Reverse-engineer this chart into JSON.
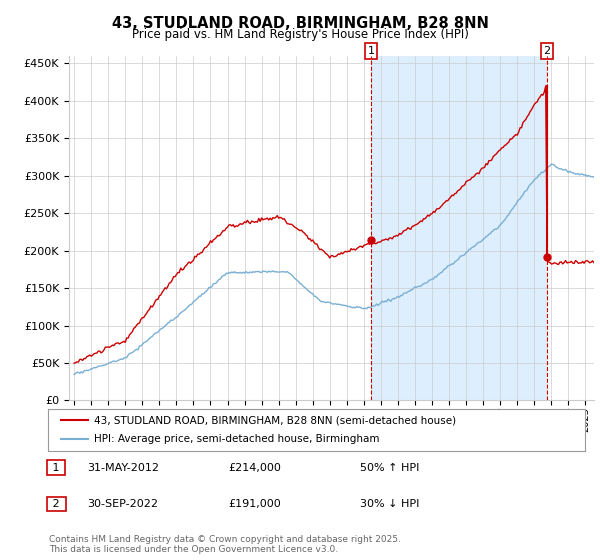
{
  "title": "43, STUDLAND ROAD, BIRMINGHAM, B28 8NN",
  "subtitle": "Price paid vs. HM Land Registry's House Price Index (HPI)",
  "legend_line1": "43, STUDLAND ROAD, BIRMINGHAM, B28 8NN (semi-detached house)",
  "legend_line2": "HPI: Average price, semi-detached house, Birmingham",
  "marker1_date": "31-MAY-2012",
  "marker1_price": "£214,000",
  "marker1_hpi": "50% ↑ HPI",
  "marker2_date": "30-SEP-2022",
  "marker2_price": "£191,000",
  "marker2_hpi": "30% ↓ HPI",
  "footer": "Contains HM Land Registry data © Crown copyright and database right 2025.\nThis data is licensed under the Open Government Licence v3.0.",
  "ylim": [
    0,
    460000
  ],
  "ytick_labels": [
    "£0",
    "£50K",
    "£100K",
    "£150K",
    "£200K",
    "£250K",
    "£300K",
    "£350K",
    "£400K",
    "£450K"
  ],
  "price_color": "#cc0000",
  "hpi_color": "#7aafd4",
  "shade_color": "#ddeeff",
  "marker_color": "#cc0000",
  "background_color": "#ffffff",
  "grid_color": "#cccccc"
}
